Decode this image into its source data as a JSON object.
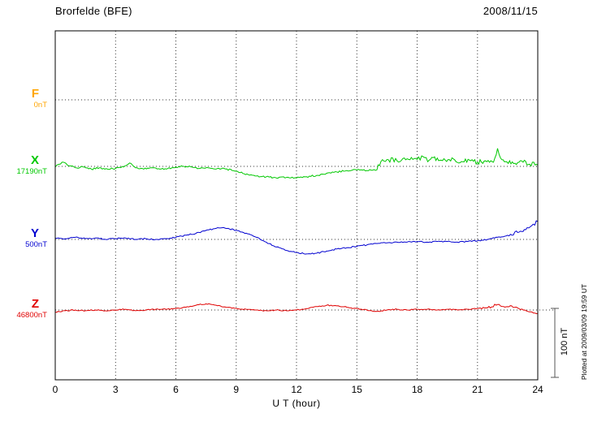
{
  "header": {
    "title": "Brorfelde (BFE)",
    "date": "2008/11/15"
  },
  "footer_note": "Plotted at 2009/03/09 19:59 UT",
  "chart_data": {
    "type": "line",
    "title": "Brorfelde (BFE)",
    "date": "2008/11/15",
    "xlabel": "U T (hour)",
    "x_range": [
      0,
      24
    ],
    "x_ticks": [
      0,
      3,
      6,
      9,
      12,
      15,
      18,
      21,
      24
    ],
    "grid": "dotted vertical at 3h intervals, dotted horizontal baselines per component",
    "scale": {
      "label": "100 nT",
      "nT": 100
    },
    "series": [
      {
        "name": "F",
        "baseline_label": "0nT",
        "baseline_value_nT": 0,
        "color": "#ffa500",
        "points": []
      },
      {
        "name": "X",
        "baseline_label": "17190nT",
        "baseline_value_nT": 17190,
        "color": "#00c800",
        "points": [
          [
            0,
            -1
          ],
          [
            0.2,
            3
          ],
          [
            0.4,
            6
          ],
          [
            0.6,
            2
          ],
          [
            1,
            -2
          ],
          [
            1.4,
            -1
          ],
          [
            1.8,
            -4
          ],
          [
            2.2,
            -2
          ],
          [
            2.6,
            -4
          ],
          [
            3,
            -3
          ],
          [
            3.4,
            -1
          ],
          [
            3.7,
            5
          ],
          [
            4,
            -2
          ],
          [
            4.4,
            -4
          ],
          [
            4.8,
            -2
          ],
          [
            5.2,
            -4
          ],
          [
            5.6,
            -3
          ],
          [
            6,
            -1
          ],
          [
            6.4,
            0
          ],
          [
            6.8,
            -1
          ],
          [
            7.2,
            -3
          ],
          [
            7.6,
            -2
          ],
          [
            8,
            -4
          ],
          [
            8.4,
            -3
          ],
          [
            8.8,
            -6
          ],
          [
            9.2,
            -9
          ],
          [
            9.6,
            -12
          ],
          [
            10,
            -14
          ],
          [
            10.5,
            -15
          ],
          [
            11,
            -17
          ],
          [
            11.5,
            -16
          ],
          [
            12,
            -17
          ],
          [
            12.5,
            -15
          ],
          [
            13,
            -13
          ],
          [
            13.5,
            -10
          ],
          [
            14,
            -8
          ],
          [
            14.5,
            -6
          ],
          [
            15,
            -5
          ],
          [
            15.5,
            -6
          ],
          [
            16,
            -5
          ],
          [
            16.2,
            7
          ],
          [
            16.5,
            10
          ],
          [
            17,
            8
          ],
          [
            17.5,
            11
          ],
          [
            18,
            10
          ],
          [
            18.3,
            14
          ],
          [
            18.6,
            9
          ],
          [
            19,
            12
          ],
          [
            19.4,
            9
          ],
          [
            19.8,
            11
          ],
          [
            20.2,
            7
          ],
          [
            20.6,
            9
          ],
          [
            21,
            6
          ],
          [
            21.4,
            8
          ],
          [
            21.8,
            6
          ],
          [
            22,
            26
          ],
          [
            22.15,
            12
          ],
          [
            22.4,
            7
          ],
          [
            22.8,
            4
          ],
          [
            23.2,
            8
          ],
          [
            23.6,
            3
          ],
          [
            23.8,
            6
          ],
          [
            24,
            2
          ]
        ],
        "noise": [
          [
            0,
            16,
            1.2
          ],
          [
            16,
            24,
            3.5
          ]
        ]
      },
      {
        "name": "Y",
        "baseline_label": "500nT",
        "baseline_value_nT": 500,
        "color": "#0000d0",
        "points": [
          [
            0,
            2
          ],
          [
            0.5,
            1
          ],
          [
            1,
            3
          ],
          [
            1.5,
            1
          ],
          [
            2,
            2
          ],
          [
            2.5,
            0
          ],
          [
            3,
            1
          ],
          [
            3.5,
            2
          ],
          [
            4,
            0
          ],
          [
            4.5,
            1
          ],
          [
            5,
            0
          ],
          [
            5.5,
            1
          ],
          [
            6,
            3
          ],
          [
            6.5,
            6
          ],
          [
            7,
            9
          ],
          [
            7.5,
            13
          ],
          [
            8,
            16
          ],
          [
            8.3,
            17
          ],
          [
            8.6,
            16
          ],
          [
            9,
            13
          ],
          [
            9.5,
            9
          ],
          [
            10,
            3
          ],
          [
            10.5,
            -4
          ],
          [
            11,
            -11
          ],
          [
            11.5,
            -16
          ],
          [
            12,
            -19
          ],
          [
            12.5,
            -21
          ],
          [
            13,
            -20
          ],
          [
            13.5,
            -17
          ],
          [
            14,
            -14
          ],
          [
            14.5,
            -12
          ],
          [
            15,
            -10
          ],
          [
            15.5,
            -8
          ],
          [
            16,
            -6
          ],
          [
            16.5,
            -5
          ],
          [
            17,
            -4
          ],
          [
            17.5,
            -4
          ],
          [
            18,
            -3
          ],
          [
            18.5,
            -4
          ],
          [
            19,
            -3
          ],
          [
            19.5,
            -3
          ],
          [
            20,
            -4
          ],
          [
            20.5,
            -3
          ],
          [
            21,
            -2
          ],
          [
            21.5,
            0
          ],
          [
            22,
            3
          ],
          [
            22.5,
            6
          ],
          [
            23,
            10
          ],
          [
            23.4,
            14
          ],
          [
            23.7,
            20
          ],
          [
            24,
            26
          ]
        ],
        "noise": [
          [
            0,
            22.5,
            0.9
          ],
          [
            22.5,
            24,
            3
          ]
        ]
      },
      {
        "name": "Z",
        "baseline_label": "46800nT",
        "baseline_value_nT": 46800,
        "color": "#e00000",
        "points": [
          [
            0,
            -3
          ],
          [
            0.5,
            -1
          ],
          [
            1,
            0
          ],
          [
            1.5,
            -1
          ],
          [
            2,
            0
          ],
          [
            2.5,
            -1
          ],
          [
            3,
            0
          ],
          [
            3.5,
            1
          ],
          [
            4,
            -1
          ],
          [
            4.5,
            0
          ],
          [
            5,
            1
          ],
          [
            5.5,
            1
          ],
          [
            6,
            2
          ],
          [
            6.5,
            4
          ],
          [
            7,
            7
          ],
          [
            7.5,
            9
          ],
          [
            8,
            7
          ],
          [
            8.5,
            4
          ],
          [
            9,
            2
          ],
          [
            9.5,
            1
          ],
          [
            10,
            0
          ],
          [
            10.5,
            -1
          ],
          [
            11,
            0
          ],
          [
            11.5,
            -1
          ],
          [
            12,
            0
          ],
          [
            12.5,
            2
          ],
          [
            13,
            5
          ],
          [
            13.5,
            7
          ],
          [
            14,
            6
          ],
          [
            14.5,
            4
          ],
          [
            15,
            2
          ],
          [
            15.5,
            0
          ],
          [
            16,
            -2
          ],
          [
            16.5,
            0
          ],
          [
            17,
            1
          ],
          [
            17.5,
            0
          ],
          [
            18,
            1
          ],
          [
            18.5,
            1
          ],
          [
            19,
            0
          ],
          [
            19.5,
            1
          ],
          [
            20,
            0
          ],
          [
            20.5,
            1
          ],
          [
            21,
            2
          ],
          [
            21.5,
            3
          ],
          [
            22,
            8
          ],
          [
            22.3,
            5
          ],
          [
            22.7,
            6
          ],
          [
            23,
            3
          ],
          [
            23.5,
            -2
          ],
          [
            24,
            -5
          ]
        ],
        "noise": [
          [
            0,
            21,
            0.8
          ],
          [
            21,
            23.2,
            1.8
          ],
          [
            23.2,
            24,
            0.8
          ]
        ]
      }
    ]
  }
}
